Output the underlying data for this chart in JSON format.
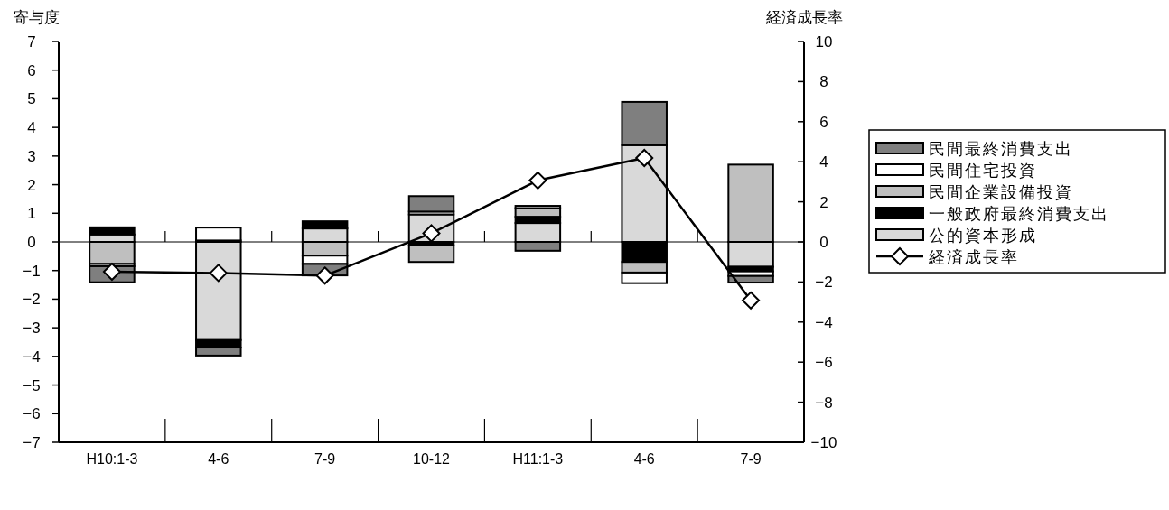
{
  "chart_data": {
    "type": "bar",
    "stacked": true,
    "ylabel": "寄与度",
    "y2label": "経済成長率",
    "categories": [
      "H10:1-3",
      "4-6",
      "7-9",
      "10-12",
      "H11:1-3",
      "4-6",
      "7-9"
    ],
    "ylim": [
      -7,
      7
    ],
    "yticks": [
      {
        "value": -7,
        "label": "−7"
      },
      {
        "value": -6,
        "label": "−6"
      },
      {
        "value": -5,
        "label": "−5"
      },
      {
        "value": -4,
        "label": "−4"
      },
      {
        "value": -3,
        "label": "−3"
      },
      {
        "value": -2,
        "label": "−2"
      },
      {
        "value": -1,
        "label": "−1"
      },
      0,
      1,
      2,
      3,
      4,
      5,
      6,
      7
    ],
    "y2lim": [
      -10,
      10
    ],
    "y2ticks": [
      {
        "value": -10,
        "label": "−10"
      },
      {
        "value": -8,
        "label": "−8"
      },
      {
        "value": -6,
        "label": "−6"
      },
      {
        "value": -4,
        "label": "−4"
      },
      {
        "value": -2,
        "label": "−2"
      },
      0,
      2,
      4,
      6,
      8,
      10
    ],
    "legend": "right",
    "series": [
      {
        "name": "公的資本形成",
        "color": "#d9d9d9",
        "values": [
          0.26,
          -3.43,
          0.47,
          0.96,
          0.66,
          3.38,
          -0.87
        ]
      },
      {
        "name": "一般政府最終消費支出",
        "color": "#000000",
        "values": [
          0.25,
          -0.26,
          0.25,
          -0.12,
          0.22,
          -0.7,
          -0.16
        ]
      },
      {
        "name": "民間企業設備投資",
        "color": "#bfbfbf",
        "values": [
          -0.77,
          0.05,
          -0.48,
          -0.58,
          0.3,
          -0.37,
          2.7
        ]
      },
      {
        "name": "民間住宅投資",
        "color": "#ffffff",
        "values": [
          -0.08,
          0.45,
          -0.29,
          0.1,
          0.08,
          -0.37,
          -0.16
        ]
      },
      {
        "name": "民間最終消費支出",
        "color": "#7f7f7f",
        "values": [
          -0.56,
          -0.28,
          -0.4,
          0.54,
          -0.31,
          1.51,
          -0.23
        ]
      },
      {
        "name": "経済成長率",
        "type": "line",
        "axis": "y2",
        "marker": "diamond",
        "color": "#000000",
        "values": [
          -1.49,
          -1.55,
          -1.68,
          0.43,
          3.07,
          4.19,
          -2.92
        ]
      }
    ]
  }
}
